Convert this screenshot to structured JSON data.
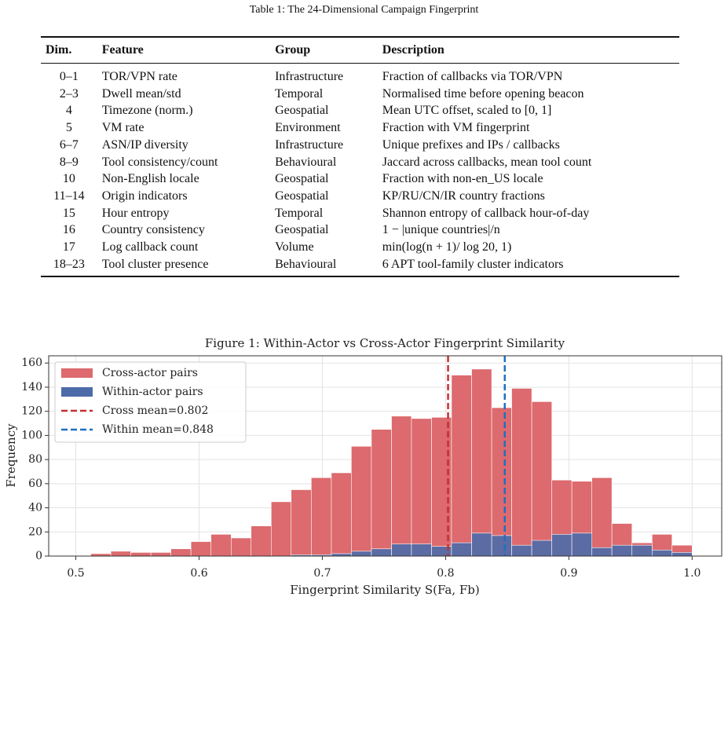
{
  "table": {
    "caption": "Table 1: The 24-Dimensional Campaign Fingerprint",
    "columns": [
      "Dim.",
      "Feature",
      "Group",
      "Description"
    ],
    "rows": [
      [
        "0–1",
        "TOR/VPN rate",
        "Infrastructure",
        "Fraction of callbacks via TOR/VPN"
      ],
      [
        "2–3",
        "Dwell mean/std",
        "Temporal",
        "Normalised time before opening beacon"
      ],
      [
        "4",
        "Timezone (norm.)",
        "Geospatial",
        "Mean UTC offset, scaled to [0, 1]"
      ],
      [
        "5",
        "VM rate",
        "Environment",
        "Fraction with VM fingerprint"
      ],
      [
        "6–7",
        "ASN/IP diversity",
        "Infrastructure",
        "Unique prefixes and IPs / callbacks"
      ],
      [
        "8–9",
        "Tool consistency/count",
        "Behavioural",
        "Jaccard across callbacks, mean tool count"
      ],
      [
        "10",
        "Non-English locale",
        "Geospatial",
        "Fraction with non-en_US locale"
      ],
      [
        "11–14",
        "Origin indicators",
        "Geospatial",
        "KP/RU/CN/IR country fractions"
      ],
      [
        "15",
        "Hour entropy",
        "Temporal",
        "Shannon entropy of callback hour-of-day"
      ],
      [
        "16",
        "Country consistency",
        "Geospatial",
        "1 − |unique countries|/n"
      ],
      [
        "17",
        "Log callback count",
        "Volume",
        "min(log(n + 1)/ log 20, 1)"
      ],
      [
        "18–23",
        "Tool cluster presence",
        "Behavioural",
        "6 APT tool-family cluster indicators"
      ]
    ]
  },
  "chart_data": {
    "type": "histogram",
    "title": "Figure 1: Within-Actor vs Cross-Actor Fingerprint Similarity",
    "xlabel": "Fingerprint Similarity S(Fa, Fb)",
    "ylabel": "Frequency",
    "bins": [
      0.5121,
      0.5284,
      0.5446,
      0.5609,
      0.5772,
      0.5934,
      0.6097,
      0.626,
      0.6422,
      0.6585,
      0.6747,
      0.691,
      0.7073,
      0.7235,
      0.7398,
      0.7561,
      0.7723,
      0.7886,
      0.8048,
      0.8211,
      0.8374,
      0.8536,
      0.8699,
      0.8862,
      0.9024,
      0.9187,
      0.9349,
      0.9512,
      0.9675,
      0.9837,
      1.0
    ],
    "series": [
      {
        "name": "Cross-actor pairs",
        "color": "#dc6a6e",
        "values": [
          2,
          4,
          3,
          3,
          6,
          12,
          18,
          15,
          25,
          45,
          55,
          65,
          69,
          91,
          105,
          116,
          114,
          115,
          150,
          155,
          123,
          139,
          128,
          63,
          62,
          65,
          27,
          11,
          18,
          9
        ]
      },
      {
        "name": "Within-actor pairs",
        "color": "#4d6ba8",
        "values": [
          0,
          0,
          0,
          0,
          0,
          0,
          0,
          0,
          0,
          0,
          1,
          1,
          2,
          4,
          6,
          10,
          10,
          8,
          11,
          19,
          17,
          9,
          13,
          18,
          19,
          7,
          9,
          9,
          5,
          3
        ]
      }
    ],
    "vlines": [
      {
        "name": "Cross mean=0.802",
        "value": 0.802,
        "color": "#c62f2f"
      },
      {
        "name": "Within mean=0.848",
        "value": 0.848,
        "color": "#1f6fc0"
      }
    ],
    "xlim": [
      0.478,
      1.024
    ],
    "ylim": [
      0,
      166
    ],
    "xticks": [
      0.5,
      0.6,
      0.7,
      0.8,
      0.9,
      {
        "value": 1,
        "label": "1.0"
      }
    ],
    "yticks": [
      0,
      20,
      40,
      60,
      80,
      100,
      120,
      140,
      160
    ],
    "grid": true,
    "legend": "upper left"
  }
}
